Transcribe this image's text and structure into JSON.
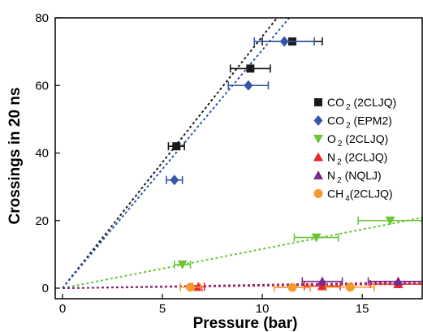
{
  "chart_data": {
    "type": "scatter",
    "xlabel": "Pressure (bar)",
    "ylabel": "Crossings in 20 ns",
    "xlim": [
      0,
      18
    ],
    "ylim": [
      0,
      80
    ],
    "xticks": [
      "0",
      "5",
      "10",
      "15"
    ],
    "yticks": [
      "0",
      "20",
      "40",
      "60",
      "80"
    ],
    "legend_position": "right",
    "series": [
      {
        "name": "CO2 (2CLJQ)",
        "main": "CO",
        "sub": "2",
        "suffix": " (2CLJQ)",
        "marker": "square",
        "color": "#1a1a1a",
        "fit_color": "#1a1a1a",
        "fit_slope": 7.45,
        "points": [
          {
            "x": 5.7,
            "y": 42.0,
            "xerr": 0.4
          },
          {
            "x": 9.4,
            "y": 65.0,
            "xerr": 1.0
          },
          {
            "x": 11.5,
            "y": 73.0,
            "xerr": 1.5
          }
        ]
      },
      {
        "name": "CO2 (EPM2)",
        "main": "CO",
        "sub": "2",
        "suffix": " (EPM2)",
        "marker": "diamond",
        "color": "#3355aa",
        "fit_color": "#3355aa",
        "fit_slope": 7.05,
        "points": [
          {
            "x": 5.6,
            "y": 32.0,
            "xerr": 0.4
          },
          {
            "x": 9.3,
            "y": 60.0,
            "xerr": 1.0
          },
          {
            "x": 11.1,
            "y": 73.0,
            "xerr": 1.5
          }
        ]
      },
      {
        "name": "O2 (2CLJQ)",
        "main": "O",
        "sub": "2",
        "suffix": " (2CLJQ)",
        "marker": "triangle-down",
        "color": "#6cc43a",
        "fit_color": "#6cc43a",
        "fit_slope": 1.16,
        "points": [
          {
            "x": 6.0,
            "y": 7.0,
            "xerr": 0.4
          },
          {
            "x": 12.7,
            "y": 15.0,
            "xerr": 1.1
          },
          {
            "x": 16.4,
            "y": 20.0,
            "xerr": 1.6
          }
        ]
      },
      {
        "name": "N2 (2CLJQ)",
        "main": "N",
        "sub": "2",
        "suffix": " (2CLJQ)",
        "marker": "triangle-up",
        "color": "#e8262d",
        "fit_color": "#e8262d",
        "fit_slope": 0.07,
        "points": [
          {
            "x": 6.8,
            "y": 0.4,
            "xerr": 0.3
          },
          {
            "x": 13.0,
            "y": 0.6,
            "xerr": 0.9
          },
          {
            "x": 16.8,
            "y": 1.2,
            "xerr": 1.4
          }
        ]
      },
      {
        "name": "N2 (NQLJ)",
        "main": "N",
        "sub": "2",
        "suffix": " (NQLJ)",
        "marker": "triangle-up",
        "color": "#7a2a8a",
        "fit_color": "#7a2a8a",
        "fit_slope": 0.1,
        "points": [
          {
            "x": 13.0,
            "y": 2.0,
            "xerr": 1.0
          },
          {
            "x": 16.8,
            "y": 2.0,
            "xerr": 1.5
          }
        ]
      },
      {
        "name": "CH4 (2CLJQ)",
        "main": "CH",
        "sub": "4",
        "suffix": "(2CLJQ)",
        "marker": "circle",
        "color": "#f59a2e",
        "fit_color": null,
        "fit_slope": null,
        "points": [
          {
            "x": 6.4,
            "y": 0.3,
            "xerr": 0.5
          },
          {
            "x": 11.5,
            "y": 0.2,
            "xerr": 0.9
          },
          {
            "x": 14.4,
            "y": 0.3,
            "xerr": 1.2
          }
        ]
      }
    ]
  }
}
